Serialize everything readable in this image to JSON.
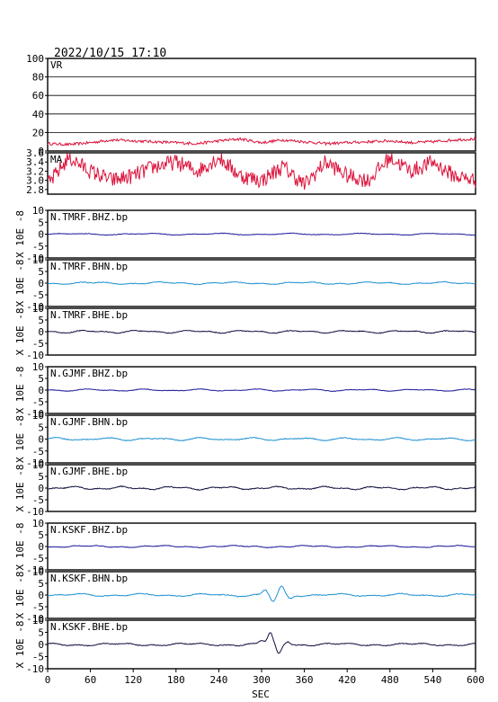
{
  "header": {
    "timestamp": "2022/10/15 17:10"
  },
  "colors": {
    "vr": "#dc143c",
    "ma": "#dc143c",
    "bhz": "#1a1a9a",
    "bhn": "#1e90d0",
    "bhe": "#101040"
  },
  "chart_data": {
    "type": "line",
    "xlabel": "SEC",
    "xlim": [
      0,
      600
    ],
    "x_ticks": [
      "0",
      "60",
      "120",
      "180",
      "240",
      "300",
      "360",
      "420",
      "480",
      "540",
      "600"
    ],
    "panels": [
      {
        "id": "vr",
        "label": "VR",
        "ylim": [
          0,
          100
        ],
        "y_ticks": [
          "100",
          "80",
          "60",
          "40",
          "20",
          "0"
        ],
        "ylabel": "",
        "grid": true,
        "baseline_level": 9,
        "series": [
          {
            "color_key": "vr",
            "x": [
              0,
              30,
              60,
              90,
              120,
              150,
              180,
              210,
              240,
              270,
              300,
              330,
              360,
              390,
              420,
              450,
              480,
              510,
              540,
              570,
              600
            ],
            "values": [
              8,
              7,
              9,
              12,
              11,
              10,
              9,
              8,
              11,
              13,
              9,
              12,
              10,
              8,
              9,
              10,
              11,
              9,
              10,
              12,
              13
            ]
          }
        ]
      },
      {
        "id": "ma",
        "label": "MA",
        "ylim": [
          2.7,
          3.6
        ],
        "y_ticks": [
          "3.6",
          "3.4",
          "3.2",
          "3.0",
          "2.8"
        ],
        "ylabel": "",
        "grid": false,
        "series": [
          {
            "color_key": "ma",
            "x": [
              0,
              30,
              60,
              90,
              120,
              150,
              180,
              210,
              240,
              270,
              300,
              330,
              360,
              390,
              420,
              450,
              480,
              510,
              540,
              570,
              600
            ],
            "values": [
              2.9,
              3.5,
              3.2,
              3.0,
              3.1,
              3.3,
              3.4,
              3.2,
              3.5,
              3.1,
              3.0,
              3.3,
              2.9,
              3.4,
              3.1,
              3.0,
              3.5,
              3.2,
              3.4,
              3.1,
              3.0
            ]
          }
        ]
      },
      {
        "id": "tmrf-bhz",
        "label": "N.TMRF.BHZ.bp",
        "ylim": [
          -10,
          10
        ],
        "y_ticks": [
          "10",
          "5",
          "0",
          "-5",
          "-10"
        ],
        "ylabel": "X 10E -8",
        "grid": false,
        "amplitude": 0.25,
        "series": [
          {
            "color_key": "bhz"
          }
        ]
      },
      {
        "id": "tmrf-bhn",
        "label": "N.TMRF.BHN.bp",
        "ylim": [
          -10,
          10
        ],
        "y_ticks": [
          "10",
          "5",
          "0",
          "-5",
          "-10"
        ],
        "ylabel": "X 10E -8",
        "grid": false,
        "amplitude": 0.35,
        "series": [
          {
            "color_key": "bhn"
          }
        ]
      },
      {
        "id": "tmrf-bhe",
        "label": "N.TMRF.BHE.bp",
        "ylim": [
          -10,
          10
        ],
        "y_ticks": [
          "10",
          "5",
          "0",
          "-5",
          "-10"
        ],
        "ylabel": "X 10E -8",
        "grid": false,
        "amplitude": 0.4,
        "series": [
          {
            "color_key": "bhe"
          }
        ]
      },
      {
        "id": "gjmf-bhz",
        "label": "N.GJMF.BHZ.bp",
        "ylim": [
          -10,
          10
        ],
        "y_ticks": [
          "10",
          "5",
          "0",
          "-5",
          "-10"
        ],
        "ylabel": "X 10E -8",
        "grid": false,
        "amplitude": 0.3,
        "series": [
          {
            "color_key": "bhz"
          }
        ]
      },
      {
        "id": "gjmf-bhn",
        "label": "N.GJMF.BHN.bp",
        "ylim": [
          -10,
          10
        ],
        "y_ticks": [
          "10",
          "5",
          "0",
          "-5",
          "-10"
        ],
        "ylabel": "X 10E -8",
        "grid": false,
        "amplitude": 0.4,
        "series": [
          {
            "color_key": "bhn"
          }
        ]
      },
      {
        "id": "gjmf-bhe",
        "label": "N.GJMF.BHE.bp",
        "ylim": [
          -10,
          10
        ],
        "y_ticks": [
          "10",
          "5",
          "0",
          "-5",
          "-10"
        ],
        "ylabel": "X 10E -8",
        "grid": false,
        "amplitude": 0.45,
        "series": [
          {
            "color_key": "bhe"
          }
        ]
      },
      {
        "id": "kskf-bhz",
        "label": "N.KSKF.BHZ.bp",
        "ylim": [
          -10,
          10
        ],
        "y_ticks": [
          "10",
          "5",
          "0",
          "-5",
          "-10"
        ],
        "ylabel": "X 10E -8",
        "grid": false,
        "amplitude": 0.3,
        "series": [
          {
            "color_key": "bhz"
          }
        ]
      },
      {
        "id": "kskf-bhn",
        "label": "N.KSKF.BHN.bp",
        "ylim": [
          -10,
          10
        ],
        "y_ticks": [
          "10",
          "5",
          "0",
          "-5",
          "-10"
        ],
        "ylabel": "X 10E -8",
        "grid": false,
        "amplitude": 0.4,
        "events": [
          {
            "x": 305,
            "amp": 2
          },
          {
            "x": 316,
            "amp": -3
          },
          {
            "x": 328,
            "amp": 3.5
          },
          {
            "x": 340,
            "amp": -1.5
          }
        ],
        "series": [
          {
            "color_key": "bhn"
          }
        ]
      },
      {
        "id": "kskf-bhe",
        "label": "N.KSKF.BHE.bp",
        "ylim": [
          -10,
          10
        ],
        "y_ticks": [
          "10",
          "5",
          "0",
          "-5",
          "-10"
        ],
        "ylabel": "X 10E -8",
        "grid": false,
        "amplitude": 0.4,
        "events": [
          {
            "x": 300,
            "amp": 1.5
          },
          {
            "x": 312,
            "amp": 4.5
          },
          {
            "x": 324,
            "amp": -4
          },
          {
            "x": 337,
            "amp": 1.5
          }
        ],
        "series": [
          {
            "color_key": "bhe"
          }
        ]
      }
    ]
  }
}
